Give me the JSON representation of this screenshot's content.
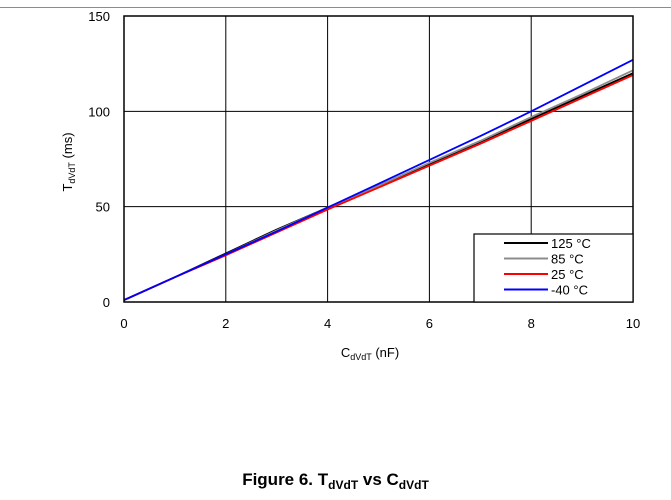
{
  "caption": {
    "prefix": "Figure 6. T",
    "sub1": "dVdT",
    "mid": " vs C",
    "sub2": "dVdT"
  },
  "chart_data": {
    "type": "line",
    "xlabel": {
      "main": "C",
      "sub": "dVdT",
      "unit": " (nF)"
    },
    "ylabel": {
      "main": "T",
      "sub": "dVdT",
      "unit": " (ms)"
    },
    "xlim": [
      0,
      10
    ],
    "ylim": [
      0,
      150
    ],
    "xticks": [
      0,
      2,
      4,
      6,
      8,
      10
    ],
    "yticks": [
      0,
      50,
      100,
      150
    ],
    "grid": true,
    "legend_position": "bottom-right",
    "x": [
      0,
      1,
      2,
      3,
      4,
      5,
      6,
      7,
      8,
      9,
      10
    ],
    "series": [
      {
        "name": "125 °C",
        "color": "#000000",
        "values": [
          1,
          13,
          25.5,
          38,
          49.5,
          61,
          72.5,
          84,
          96,
          108,
          120
        ]
      },
      {
        "name": "85 °C",
        "color": "#8c8c8c",
        "values": [
          1,
          13,
          25,
          37.5,
          49.5,
          61,
          73,
          84.5,
          97,
          109,
          121.5
        ]
      },
      {
        "name": "25 °C",
        "color": "#ff0000",
        "values": [
          1,
          13,
          24.5,
          36.5,
          48.5,
          60,
          71.5,
          83,
          95,
          107,
          119
        ]
      },
      {
        "name": "-40 °C",
        "color": "#0000ff",
        "values": [
          1,
          13,
          25,
          37,
          49.5,
          62,
          74.5,
          87,
          100,
          113.5,
          127
        ]
      }
    ]
  }
}
